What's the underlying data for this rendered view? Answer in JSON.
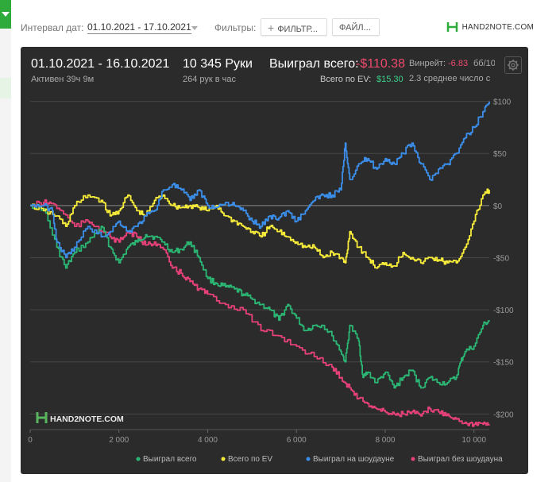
{
  "toolbar": {
    "date_interval_label": "Интервал дат:",
    "date_interval_value": "01.10.2021 - 17.10.2021",
    "filters_label": "Фильтры:",
    "filter_button": "ФИЛЬТР...",
    "files_button": "ФАЙЛ...",
    "logo": "HAND2NOTE.COM"
  },
  "summary": {
    "date_range": "01.10.2021 - 16.10.2021",
    "active": "Активен 39ч 9м",
    "hands": "10 345 Руки",
    "hands_per_hour": "264 рук в час",
    "won_total_label": "Выиграл всего:",
    "won_total_value": "-$110.38",
    "ev_label": "Всего по EV:",
    "ev_value": "$15.30",
    "winrate_label": "Винрейт:",
    "winrate_value": "-6.83",
    "winrate_unit": "бб/100",
    "avg_text": "2.3 среднее число с"
  },
  "watermark": "HAND2NOTE.COM",
  "colors": {
    "won_total": "#2bb673",
    "ev": "#f7ec3a",
    "showdown": "#3b8eea",
    "no_showdown": "#e6417a",
    "panel_bg": "#2b2b2b",
    "accent_green": "#2eab3b"
  },
  "chart_data": {
    "type": "line",
    "title": "",
    "xlabel": "",
    "ylabel": "",
    "xlim": [
      0,
      10345
    ],
    "ylim": [
      -215,
      105
    ],
    "x_ticks": [
      0,
      2000,
      4000,
      6000,
      8000,
      10000
    ],
    "x_tick_labels": [
      "0",
      "2 000",
      "4 000",
      "6 000",
      "8 000",
      "10 000"
    ],
    "y_ticks": [
      100,
      50,
      0,
      -50,
      -100,
      -150,
      -200
    ],
    "y_tick_labels": [
      "$100",
      "$50",
      "$0",
      "-$50",
      "-$100",
      "-$150",
      "-$200"
    ],
    "grid": true,
    "legend_position": "bottom-right",
    "series": [
      {
        "name": "Выиграл всего",
        "color": "#2bb673",
        "x": [
          0,
          300,
          600,
          800,
          1000,
          1300,
          1600,
          1800,
          2000,
          2200,
          2400,
          2600,
          2800,
          3000,
          3200,
          3400,
          3600,
          3800,
          4000,
          4200,
          4400,
          4600,
          4800,
          5000,
          5200,
          5400,
          5600,
          5800,
          6000,
          6200,
          6400,
          6600,
          6800,
          7000,
          7100,
          7200,
          7400,
          7500,
          7600,
          7800,
          8000,
          8200,
          8400,
          8600,
          8800,
          9000,
          9200,
          9400,
          9600,
          9700,
          9800,
          10000,
          10200,
          10345
        ],
        "y": [
          0,
          -3,
          -40,
          -60,
          -45,
          -35,
          -20,
          -40,
          -55,
          -40,
          -35,
          -28,
          -30,
          -35,
          -45,
          -42,
          -35,
          -50,
          -70,
          -75,
          -78,
          -80,
          -85,
          -90,
          -95,
          -100,
          -110,
          -95,
          -108,
          -120,
          -115,
          -115,
          -125,
          -140,
          -150,
          -115,
          -130,
          -165,
          -160,
          -170,
          -160,
          -175,
          -165,
          -158,
          -175,
          -165,
          -170,
          -170,
          -165,
          -150,
          -140,
          -135,
          -115,
          -110
        ]
      },
      {
        "name": "Всего по EV",
        "color": "#f7ec3a",
        "x": [
          0,
          300,
          600,
          800,
          1000,
          1300,
          1600,
          1800,
          2000,
          2200,
          2400,
          2600,
          2800,
          3000,
          3200,
          3400,
          3600,
          3800,
          4000,
          4200,
          4400,
          4600,
          4800,
          5000,
          5200,
          5400,
          5600,
          5800,
          6000,
          6200,
          6400,
          6600,
          6800,
          7000,
          7100,
          7200,
          7400,
          7600,
          7800,
          8000,
          8200,
          8400,
          8600,
          8800,
          9000,
          9200,
          9400,
          9600,
          9800,
          10000,
          10200,
          10345
        ],
        "y": [
          0,
          -5,
          -10,
          -20,
          0,
          10,
          5,
          -10,
          -5,
          10,
          -5,
          -10,
          5,
          10,
          0,
          -2,
          0,
          -2,
          -5,
          0,
          -10,
          -15,
          -20,
          -25,
          -30,
          -20,
          -25,
          -30,
          -35,
          -40,
          -40,
          -50,
          -45,
          -50,
          -55,
          -25,
          -40,
          -50,
          -60,
          -55,
          -58,
          -45,
          -50,
          -55,
          -50,
          -52,
          -55,
          -55,
          -40,
          -15,
          10,
          15
        ]
      },
      {
        "name": "Выиграл на шоудауне",
        "color": "#3b8eea",
        "x": [
          0,
          300,
          500,
          600,
          800,
          1000,
          1300,
          1600,
          1800,
          2000,
          2200,
          2400,
          2600,
          2800,
          3000,
          3200,
          3400,
          3600,
          3800,
          4000,
          4200,
          4400,
          4600,
          4800,
          5000,
          5200,
          5400,
          5600,
          5800,
          6000,
          6200,
          6400,
          6600,
          6800,
          7000,
          7100,
          7200,
          7400,
          7600,
          7800,
          8000,
          8200,
          8400,
          8600,
          8800,
          9000,
          9200,
          9400,
          9600,
          9800,
          10000,
          10200,
          10345
        ],
        "y": [
          0,
          0,
          -5,
          -35,
          -50,
          -40,
          -20,
          -30,
          -25,
          -15,
          -25,
          -20,
          -10,
          -5,
          15,
          20,
          15,
          5,
          15,
          0,
          -2,
          3,
          0,
          -5,
          -15,
          -20,
          -10,
          -12,
          -5,
          -15,
          -5,
          5,
          10,
          10,
          15,
          60,
          25,
          40,
          45,
          35,
          45,
          40,
          50,
          60,
          40,
          25,
          35,
          40,
          50,
          65,
          75,
          90,
          100
        ]
      },
      {
        "name": "Выиграл без шоудауна",
        "color": "#e6417a",
        "x": [
          0,
          300,
          500,
          700,
          1000,
          1300,
          1500,
          1800,
          2000,
          2200,
          2400,
          2600,
          2800,
          3000,
          3200,
          3400,
          3600,
          3800,
          4000,
          4400,
          4800,
          5200,
          5600,
          6000,
          6400,
          6800,
          7000,
          7200,
          7400,
          7600,
          7800,
          8000,
          8200,
          8400,
          8600,
          8800,
          9000,
          9200,
          9400,
          9600,
          9800,
          10000,
          10200,
          10345
        ],
        "y": [
          0,
          3,
          2,
          -5,
          -20,
          -15,
          -20,
          -30,
          -35,
          -25,
          -30,
          -38,
          -35,
          -42,
          -60,
          -65,
          -73,
          -80,
          -85,
          -95,
          -100,
          -120,
          -125,
          -135,
          -145,
          -155,
          -165,
          -175,
          -185,
          -190,
          -195,
          -198,
          -200,
          -200,
          -198,
          -202,
          -195,
          -198,
          -200,
          -205,
          -208,
          -210,
          -210,
          -210
        ]
      }
    ]
  }
}
